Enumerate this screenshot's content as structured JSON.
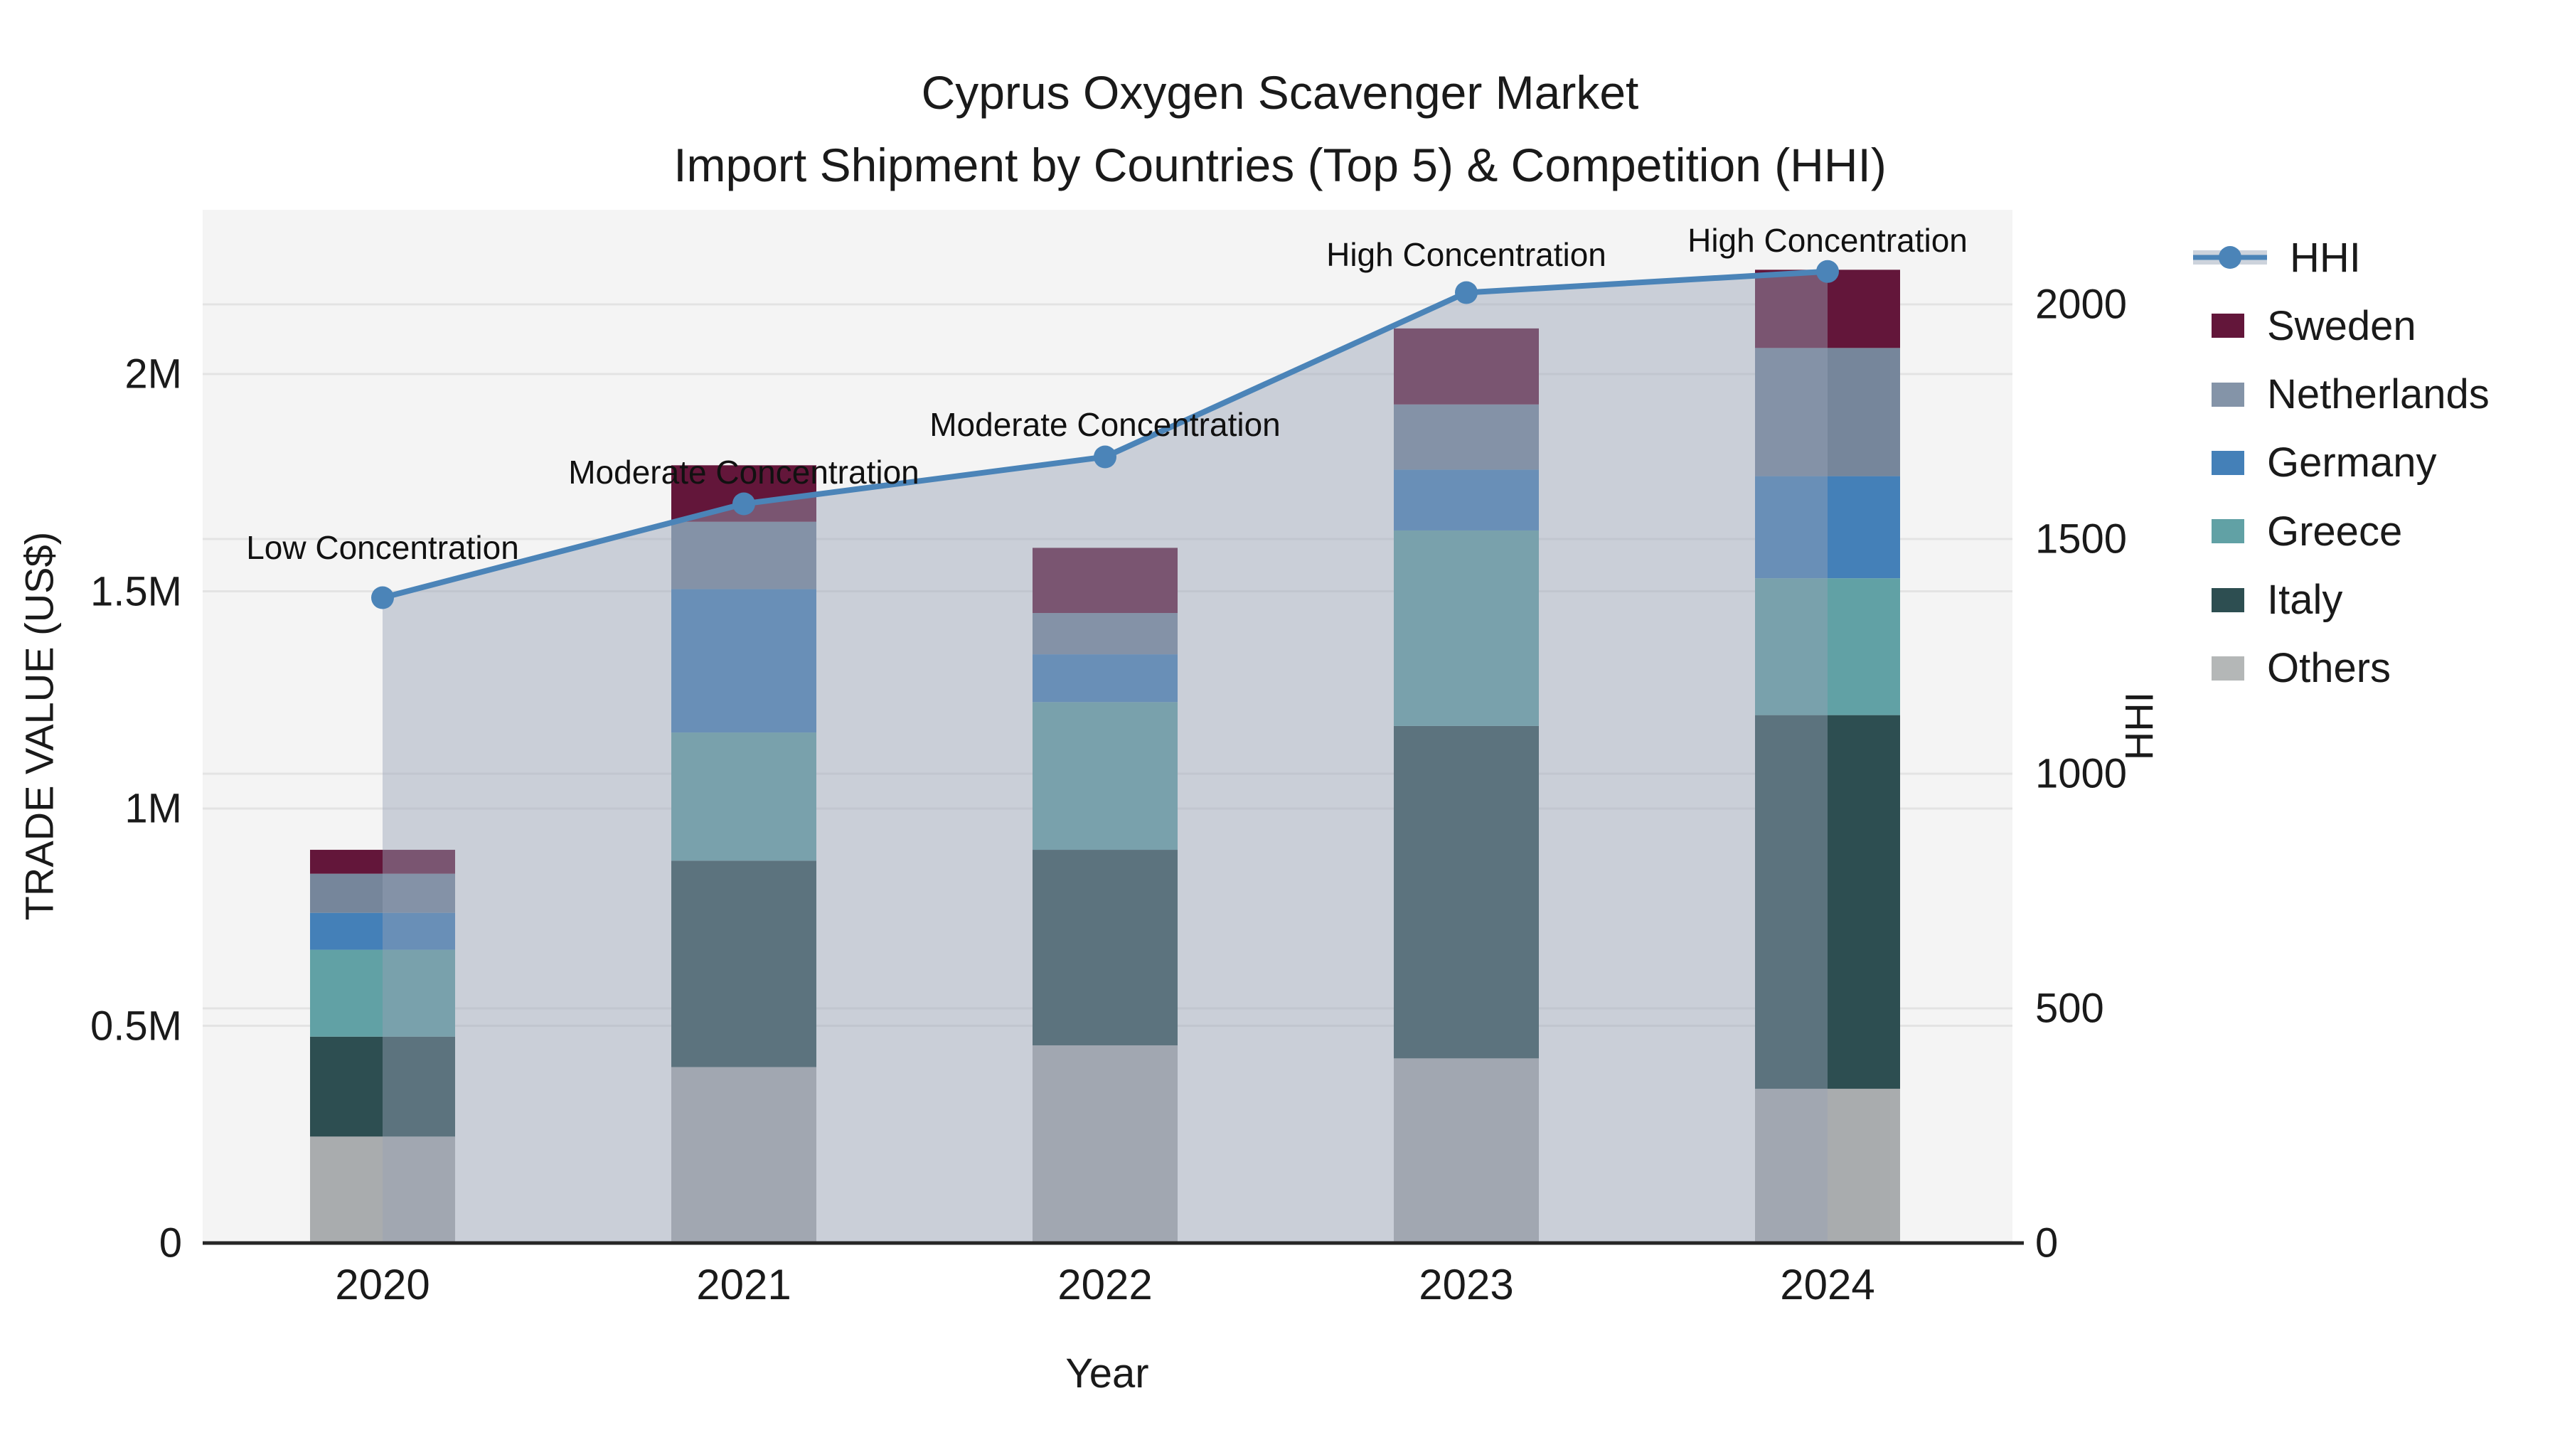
{
  "title": {
    "line1": "Cyprus Oxygen Scavenger Market",
    "line2": "Import Shipment by Countries (Top 5) & Competition (HHI)"
  },
  "chart_data": {
    "type": "combo: stacked bar (trade value by country) + line (HHI) with area fill",
    "categories": [
      "2020",
      "2021",
      "2022",
      "2023",
      "2024"
    ],
    "bar_series": [
      {
        "name": "Sweden",
        "color": "#63163a",
        "values": [
          55000,
          130000,
          150000,
          175000,
          180000
        ]
      },
      {
        "name": "Netherlands",
        "color": "#76869b",
        "values": [
          90000,
          155000,
          95000,
          150000,
          295000
        ]
      },
      {
        "name": "Germany",
        "color": "#4480b8",
        "values": [
          85000,
          330000,
          110000,
          140000,
          235000
        ]
      },
      {
        "name": "Greece",
        "color": "#61a1a5",
        "values": [
          200000,
          295000,
          340000,
          450000,
          315000
        ]
      },
      {
        "name": "Italy",
        "color": "#2d4e51",
        "values": [
          230000,
          475000,
          450000,
          765000,
          860000
        ]
      },
      {
        "name": "Others",
        "color": "#a9acae",
        "values": [
          245000,
          405000,
          455000,
          425000,
          355000
        ]
      }
    ],
    "stack_order_bottom_to_top": [
      "Others",
      "Italy",
      "Greece",
      "Germany",
      "Netherlands",
      "Sweden"
    ],
    "bar_totals": [
      905000,
      1790000,
      1600000,
      2105000,
      2240000
    ],
    "line_series": {
      "name": "HHI",
      "color": "#4b84b8",
      "area_fill": "#96a2b5",
      "area_opacity": 0.45,
      "values": [
        1375,
        1575,
        1675,
        2025,
        2070
      ]
    },
    "annotations": [
      {
        "year": "2020",
        "text": "Low Concentration"
      },
      {
        "year": "2021",
        "text": "Moderate Concentration"
      },
      {
        "year": "2022",
        "text": "Moderate Concentration"
      },
      {
        "year": "2023",
        "text": "High Concentration"
      },
      {
        "year": "2024",
        "text": "High Concentration"
      }
    ],
    "x_axis": {
      "label": "Year"
    },
    "y_left": {
      "label": "TRADE VALUE (US$)",
      "ticks": [
        "0",
        "0.5M",
        "1M",
        "1.5M",
        "2M"
      ],
      "tick_values": [
        0,
        500000,
        1000000,
        1500000,
        2000000
      ],
      "range": [
        0,
        2378000
      ]
    },
    "y_right": {
      "label": "HHI",
      "ticks": [
        "0",
        "500",
        "1000",
        "1500",
        "2000"
      ],
      "tick_values": [
        0,
        500,
        1000,
        1500,
        2000
      ],
      "range": [
        0,
        2200
      ]
    },
    "grid": true,
    "legend_position": "right"
  },
  "legend": {
    "entries": [
      {
        "label": "HHI",
        "type": "line",
        "color": "#4b84b8",
        "band_color": "#cdd3dc"
      },
      {
        "label": "Sweden",
        "type": "swatch",
        "color": "#63163a"
      },
      {
        "label": "Netherlands",
        "type": "swatch",
        "color": "#8494a8"
      },
      {
        "label": "Germany",
        "type": "swatch",
        "color": "#4480b8"
      },
      {
        "label": "Greece",
        "type": "swatch",
        "color": "#61a1a5"
      },
      {
        "label": "Italy",
        "type": "swatch",
        "color": "#2d4e51"
      },
      {
        "label": "Others",
        "type": "swatch",
        "color": "#b4b7b7"
      }
    ]
  },
  "colors": {
    "plot_bg": "#f4f4f4",
    "grid": "#e3e3e3",
    "axis_line": "#262626",
    "text": "#1a1a1a"
  }
}
